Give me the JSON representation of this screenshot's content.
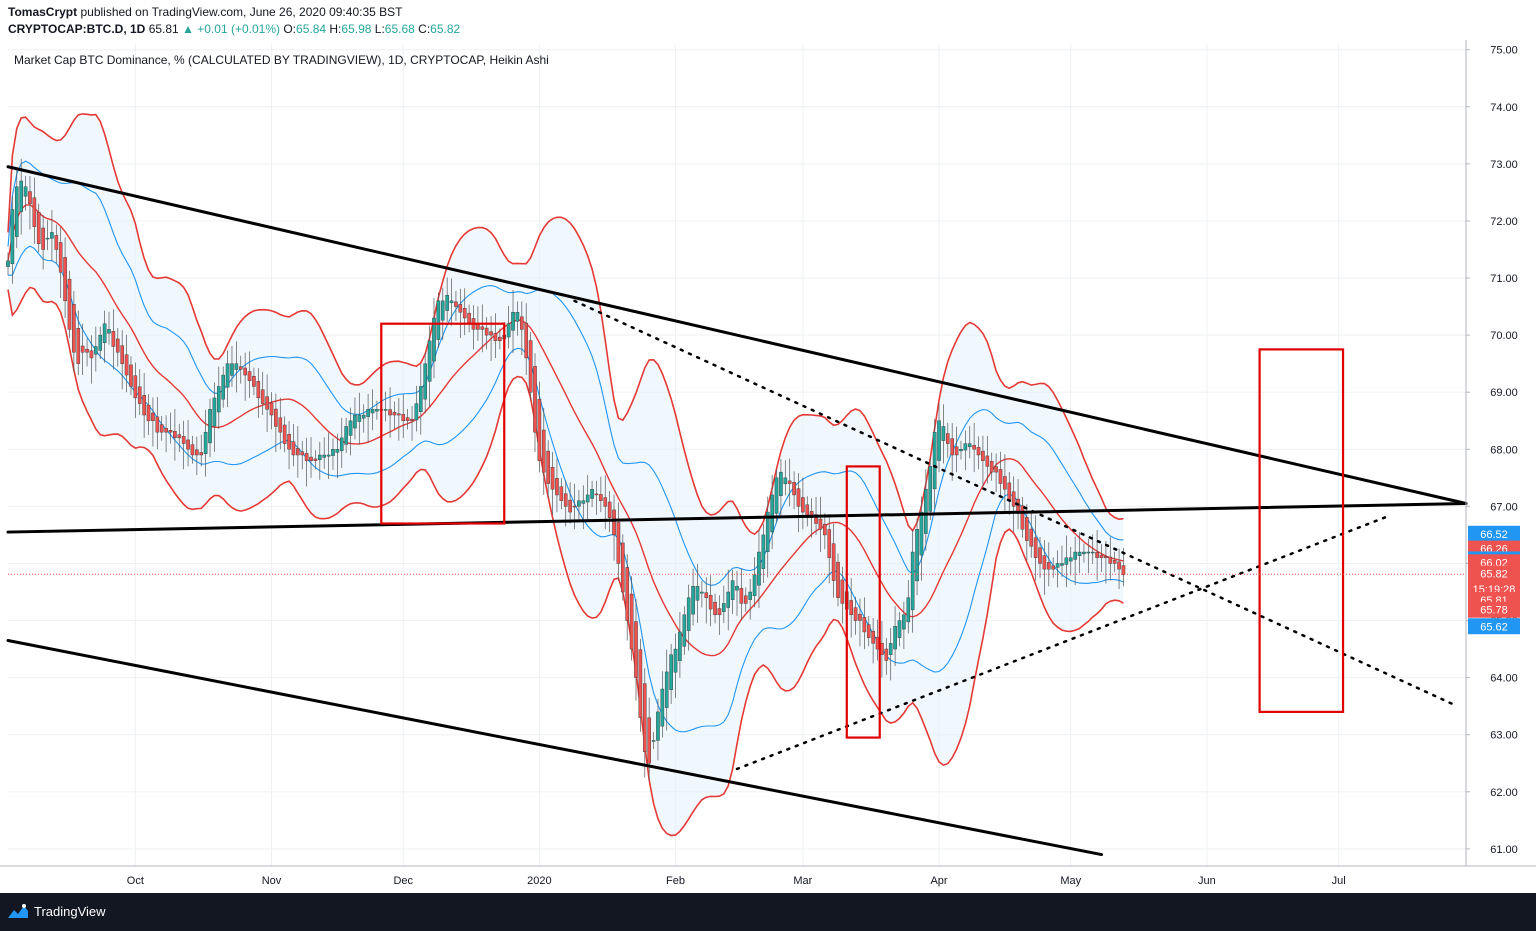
{
  "header": {
    "author": "TomasCrypt",
    "published": "published on TradingView.com, June 26, 2020 09:40:35 BST",
    "symbol": "CRYPTOCAP:BTC.D, 1D",
    "last": "65.81",
    "change": "▲ +0.01 (+0.01%)",
    "o_label": "O:",
    "o_value": "65.84",
    "h_label": "H:",
    "h_value": "65.98",
    "l_label": "L:",
    "l_value": "65.68",
    "c_label": "C:",
    "c_value": "65.82"
  },
  "footer": {
    "brand": "TradingView"
  },
  "chart_data": {
    "type": "candlestick",
    "title": "Market Cap BTC Dominance, % (CALCULATED BY TRADINGVIEW), 1D, CRYPTOCAP, Heikin Ashi",
    "y_ticks": [
      "75.00",
      "74.00",
      "73.00",
      "72.00",
      "71.00",
      "70.00",
      "69.00",
      "68.00",
      "67.00",
      "66.00",
      "65.00",
      "64.00",
      "63.00",
      "62.00",
      "61.00"
    ],
    "x_ticks": [
      "Oct",
      "Nov",
      "Dec",
      "2020",
      "Feb",
      "Mar",
      "Apr",
      "May",
      "Jun",
      "Jul"
    ],
    "ylim": [
      60.7,
      75.1
    ],
    "xlim": [
      "2019-09-02",
      "2020-07-30"
    ],
    "candles_close": [
      71.3,
      72.2,
      72.6,
      72.7,
      72.6,
      72.3,
      71.9,
      71.6,
      71.5,
      71.7,
      71.8,
      71.5,
      71.1,
      70.6,
      70.1,
      69.7,
      69.5,
      69.7,
      69.7,
      69.6,
      69.8,
      70.0,
      70.2,
      70.1,
      69.8,
      69.7,
      69.5,
      69.3,
      69.1,
      68.9,
      68.8,
      68.6,
      68.5,
      68.5,
      68.3,
      68.3,
      68.3,
      68.3,
      68.2,
      68.2,
      68.1,
      68.0,
      67.9,
      67.9,
      67.9,
      68.3,
      68.7,
      68.9,
      69.1,
      69.3,
      69.5,
      69.5,
      69.5,
      69.4,
      69.3,
      69.2,
      69.1,
      68.9,
      68.8,
      68.7,
      68.6,
      68.4,
      68.3,
      68.1,
      68.0,
      67.9,
      67.9,
      67.9,
      67.8,
      67.8,
      67.8,
      67.9,
      67.9,
      67.9,
      68.0,
      68.0,
      68.2,
      68.4,
      68.5,
      68.6,
      68.6,
      68.6,
      68.7,
      68.7,
      68.7,
      68.7,
      68.7,
      68.6,
      68.6,
      68.6,
      68.5,
      68.5,
      68.5,
      68.8,
      69.1,
      69.5,
      69.9,
      70.3,
      70.6,
      70.6,
      70.7,
      70.6,
      70.5,
      70.4,
      70.3,
      70.2,
      70.1,
      70.1,
      70.1,
      70.0,
      70.0,
      69.9,
      69.9,
      70.0,
      70.2,
      70.4,
      70.4,
      70.1,
      69.6,
      69.0,
      68.3,
      67.8,
      67.6,
      67.4,
      67.3,
      67.2,
      67.1,
      67.0,
      66.9,
      67.0,
      67.1,
      67.1,
      67.2,
      67.3,
      67.2,
      67.1,
      67.0,
      66.8,
      66.5,
      66.0,
      65.5,
      65.0,
      64.5,
      64.0,
      63.3,
      62.7,
      62.5,
      62.9,
      63.4,
      63.8,
      64.1,
      64.4,
      64.5,
      64.8,
      65.1,
      65.4,
      65.6,
      65.6,
      65.5,
      65.4,
      65.2,
      65.1,
      65.1,
      65.3,
      65.5,
      65.7,
      65.6,
      65.3,
      65.3,
      65.5,
      65.8,
      66.2,
      66.5,
      66.9,
      67.2,
      67.5,
      67.6,
      67.5,
      67.4,
      67.2,
      67.0,
      66.9,
      66.8,
      66.8,
      66.7,
      66.6,
      66.5,
      66.1,
      65.7,
      65.4,
      65.3,
      65.2,
      65.1,
      65.0,
      65.0,
      64.8,
      64.7,
      64.6,
      64.5,
      64.4,
      64.3,
      64.6,
      64.9,
      65.0,
      65.1,
      65.4,
      66.2,
      66.6,
      66.9,
      67.3,
      67.7,
      68.3,
      68.5,
      68.4,
      68.1,
      67.9,
      67.9,
      68.0,
      68.1,
      68.1,
      68.0,
      67.9,
      67.8,
      67.7,
      67.6,
      67.6,
      67.4,
      67.3,
      67.1,
      67.0,
      66.9,
      66.6,
      66.4,
      66.3,
      66.1,
      66.0,
      65.9,
      65.9,
      65.9,
      66.0,
      66.0,
      66.1,
      66.1,
      66.2,
      66.2,
      66.2,
      66.2,
      66.2,
      66.1,
      66.1,
      66.1,
      66.0,
      66.0,
      65.9,
      65.8
    ],
    "price_labels": [
      {
        "value": "66.52",
        "color": "#2196f3"
      },
      {
        "value": "66.26",
        "color": "#ef5350"
      },
      {
        "value": "66.07",
        "color": "#2196f3"
      },
      {
        "value": "66.02",
        "color": "#ef5350"
      },
      {
        "value": "65.82",
        "color": "#ef5350"
      },
      {
        "value": "15:19:28",
        "color": "#ef5350"
      },
      {
        "value": "65.81",
        "color": "#ef5350"
      },
      {
        "value": "65.78",
        "color": "#ef5350"
      },
      {
        "value": "65.62",
        "color": "#2196f3"
      }
    ],
    "grid": true,
    "colors": {
      "up": "#26a69a",
      "down": "#ef5350",
      "bb_outer": "#e53935",
      "bb_inner": "#2196f3",
      "fill": "#e3f2fd"
    }
  }
}
